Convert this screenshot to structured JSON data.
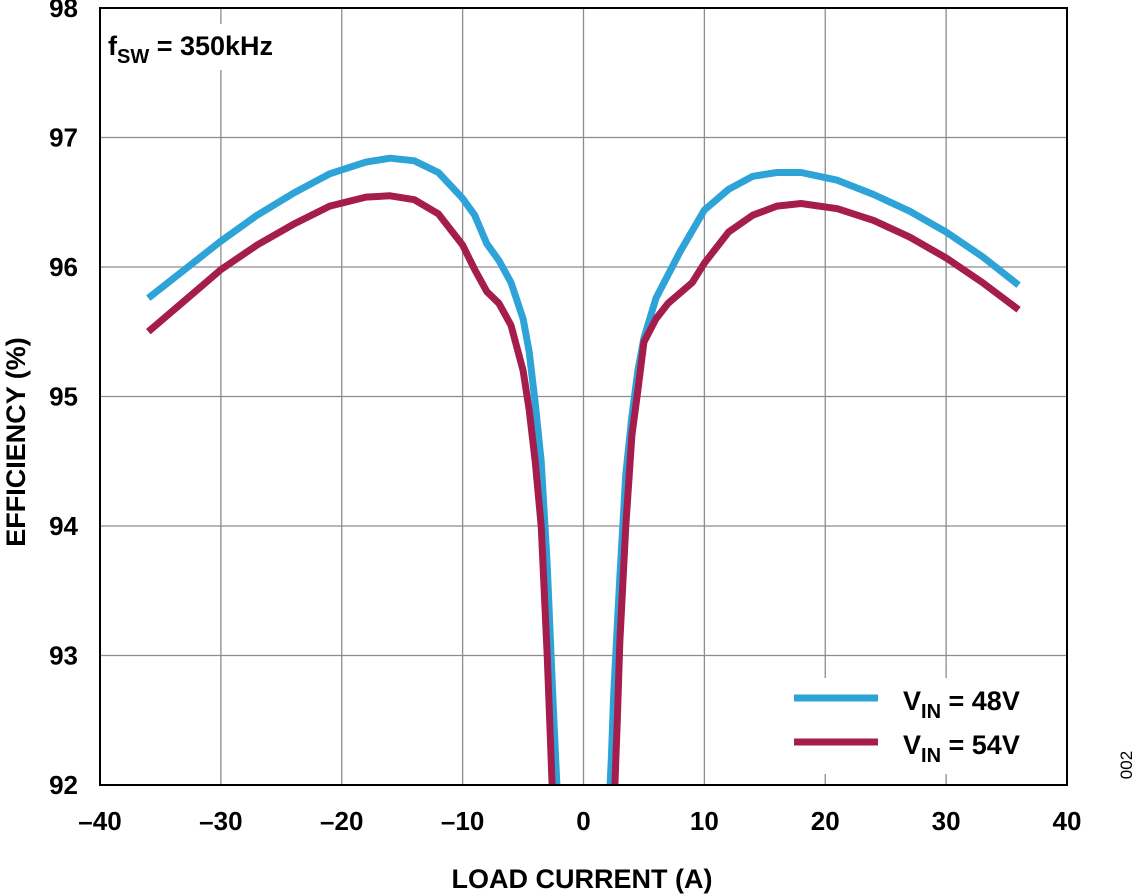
{
  "chart_data": {
    "type": "line",
    "title": "",
    "xlabel": "LOAD CURRENT (A)",
    "ylabel": "EFFICIENCY (%)",
    "xlim": [
      -40,
      40
    ],
    "ylim": [
      92,
      98
    ],
    "xticks": [
      -40,
      -30,
      -20,
      -10,
      0,
      10,
      20,
      30,
      40
    ],
    "yticks": [
      92,
      93,
      94,
      95,
      96,
      97,
      98
    ],
    "xtick_labels": [
      "–40",
      "–30",
      "–20",
      "–10",
      "0",
      "10",
      "20",
      "30",
      "40"
    ],
    "ytick_labels": [
      "92",
      "93",
      "94",
      "95",
      "96",
      "97",
      "98"
    ],
    "grid": true,
    "legend_position": "bottom-right",
    "annotation": {
      "main": "f",
      "sub": "SW",
      "rest": " = 350kHz"
    },
    "figure_code": "002",
    "series": [
      {
        "name": "VIN = 48V",
        "label_main": "V",
        "label_sub": "IN",
        "label_rest": " = 48V",
        "color": "#2ea3d8",
        "x": [
          -36,
          -33,
          -30,
          -27,
          -24,
          -21,
          -18,
          -16,
          -14,
          -12,
          -10,
          -9,
          -8,
          -7,
          -6,
          -5,
          -4.5,
          -4,
          -3.5,
          -3,
          -2.5,
          -2.3,
          -2.2,
          2.2,
          2.3,
          2.5,
          3,
          3.5,
          4,
          4.5,
          5,
          6,
          8,
          10,
          12,
          14,
          16,
          18,
          21,
          24,
          27,
          30,
          33,
          36
        ],
        "y": [
          95.76,
          95.98,
          96.2,
          96.4,
          96.57,
          96.72,
          96.81,
          96.84,
          96.82,
          96.73,
          96.53,
          96.4,
          96.18,
          96.05,
          95.88,
          95.6,
          95.35,
          94.95,
          94.5,
          93.7,
          92.6,
          92.2,
          92.0,
          92.0,
          92.2,
          92.7,
          93.6,
          94.4,
          94.85,
          95.2,
          95.45,
          95.76,
          96.12,
          96.44,
          96.6,
          96.7,
          96.73,
          96.73,
          96.67,
          96.56,
          96.43,
          96.27,
          96.08,
          95.86
        ]
      },
      {
        "name": "VIN = 54V",
        "label_main": "V",
        "label_sub": "IN",
        "label_rest": " = 54V",
        "color": "#a51d4c",
        "x": [
          -36,
          -33,
          -30,
          -27,
          -24,
          -21,
          -18,
          -16,
          -14,
          -12,
          -10,
          -9,
          -8,
          -7,
          -6,
          -5,
          -4.5,
          -4,
          -3.5,
          -3,
          -2.8,
          -2.6,
          2.6,
          2.8,
          3,
          3.5,
          4,
          4.5,
          5,
          6,
          7,
          9,
          10,
          12,
          14,
          16,
          18,
          21,
          24,
          27,
          30,
          33,
          36
        ],
        "y": [
          95.5,
          95.74,
          95.98,
          96.17,
          96.33,
          96.47,
          96.54,
          96.55,
          96.52,
          96.41,
          96.17,
          95.98,
          95.81,
          95.72,
          95.55,
          95.2,
          94.9,
          94.5,
          94.0,
          93.0,
          92.5,
          92.0,
          92.0,
          92.5,
          93.1,
          94.0,
          94.7,
          95.05,
          95.42,
          95.6,
          95.72,
          95.88,
          96.03,
          96.27,
          96.4,
          96.47,
          96.49,
          96.45,
          96.36,
          96.23,
          96.07,
          95.88,
          95.67
        ]
      }
    ]
  }
}
